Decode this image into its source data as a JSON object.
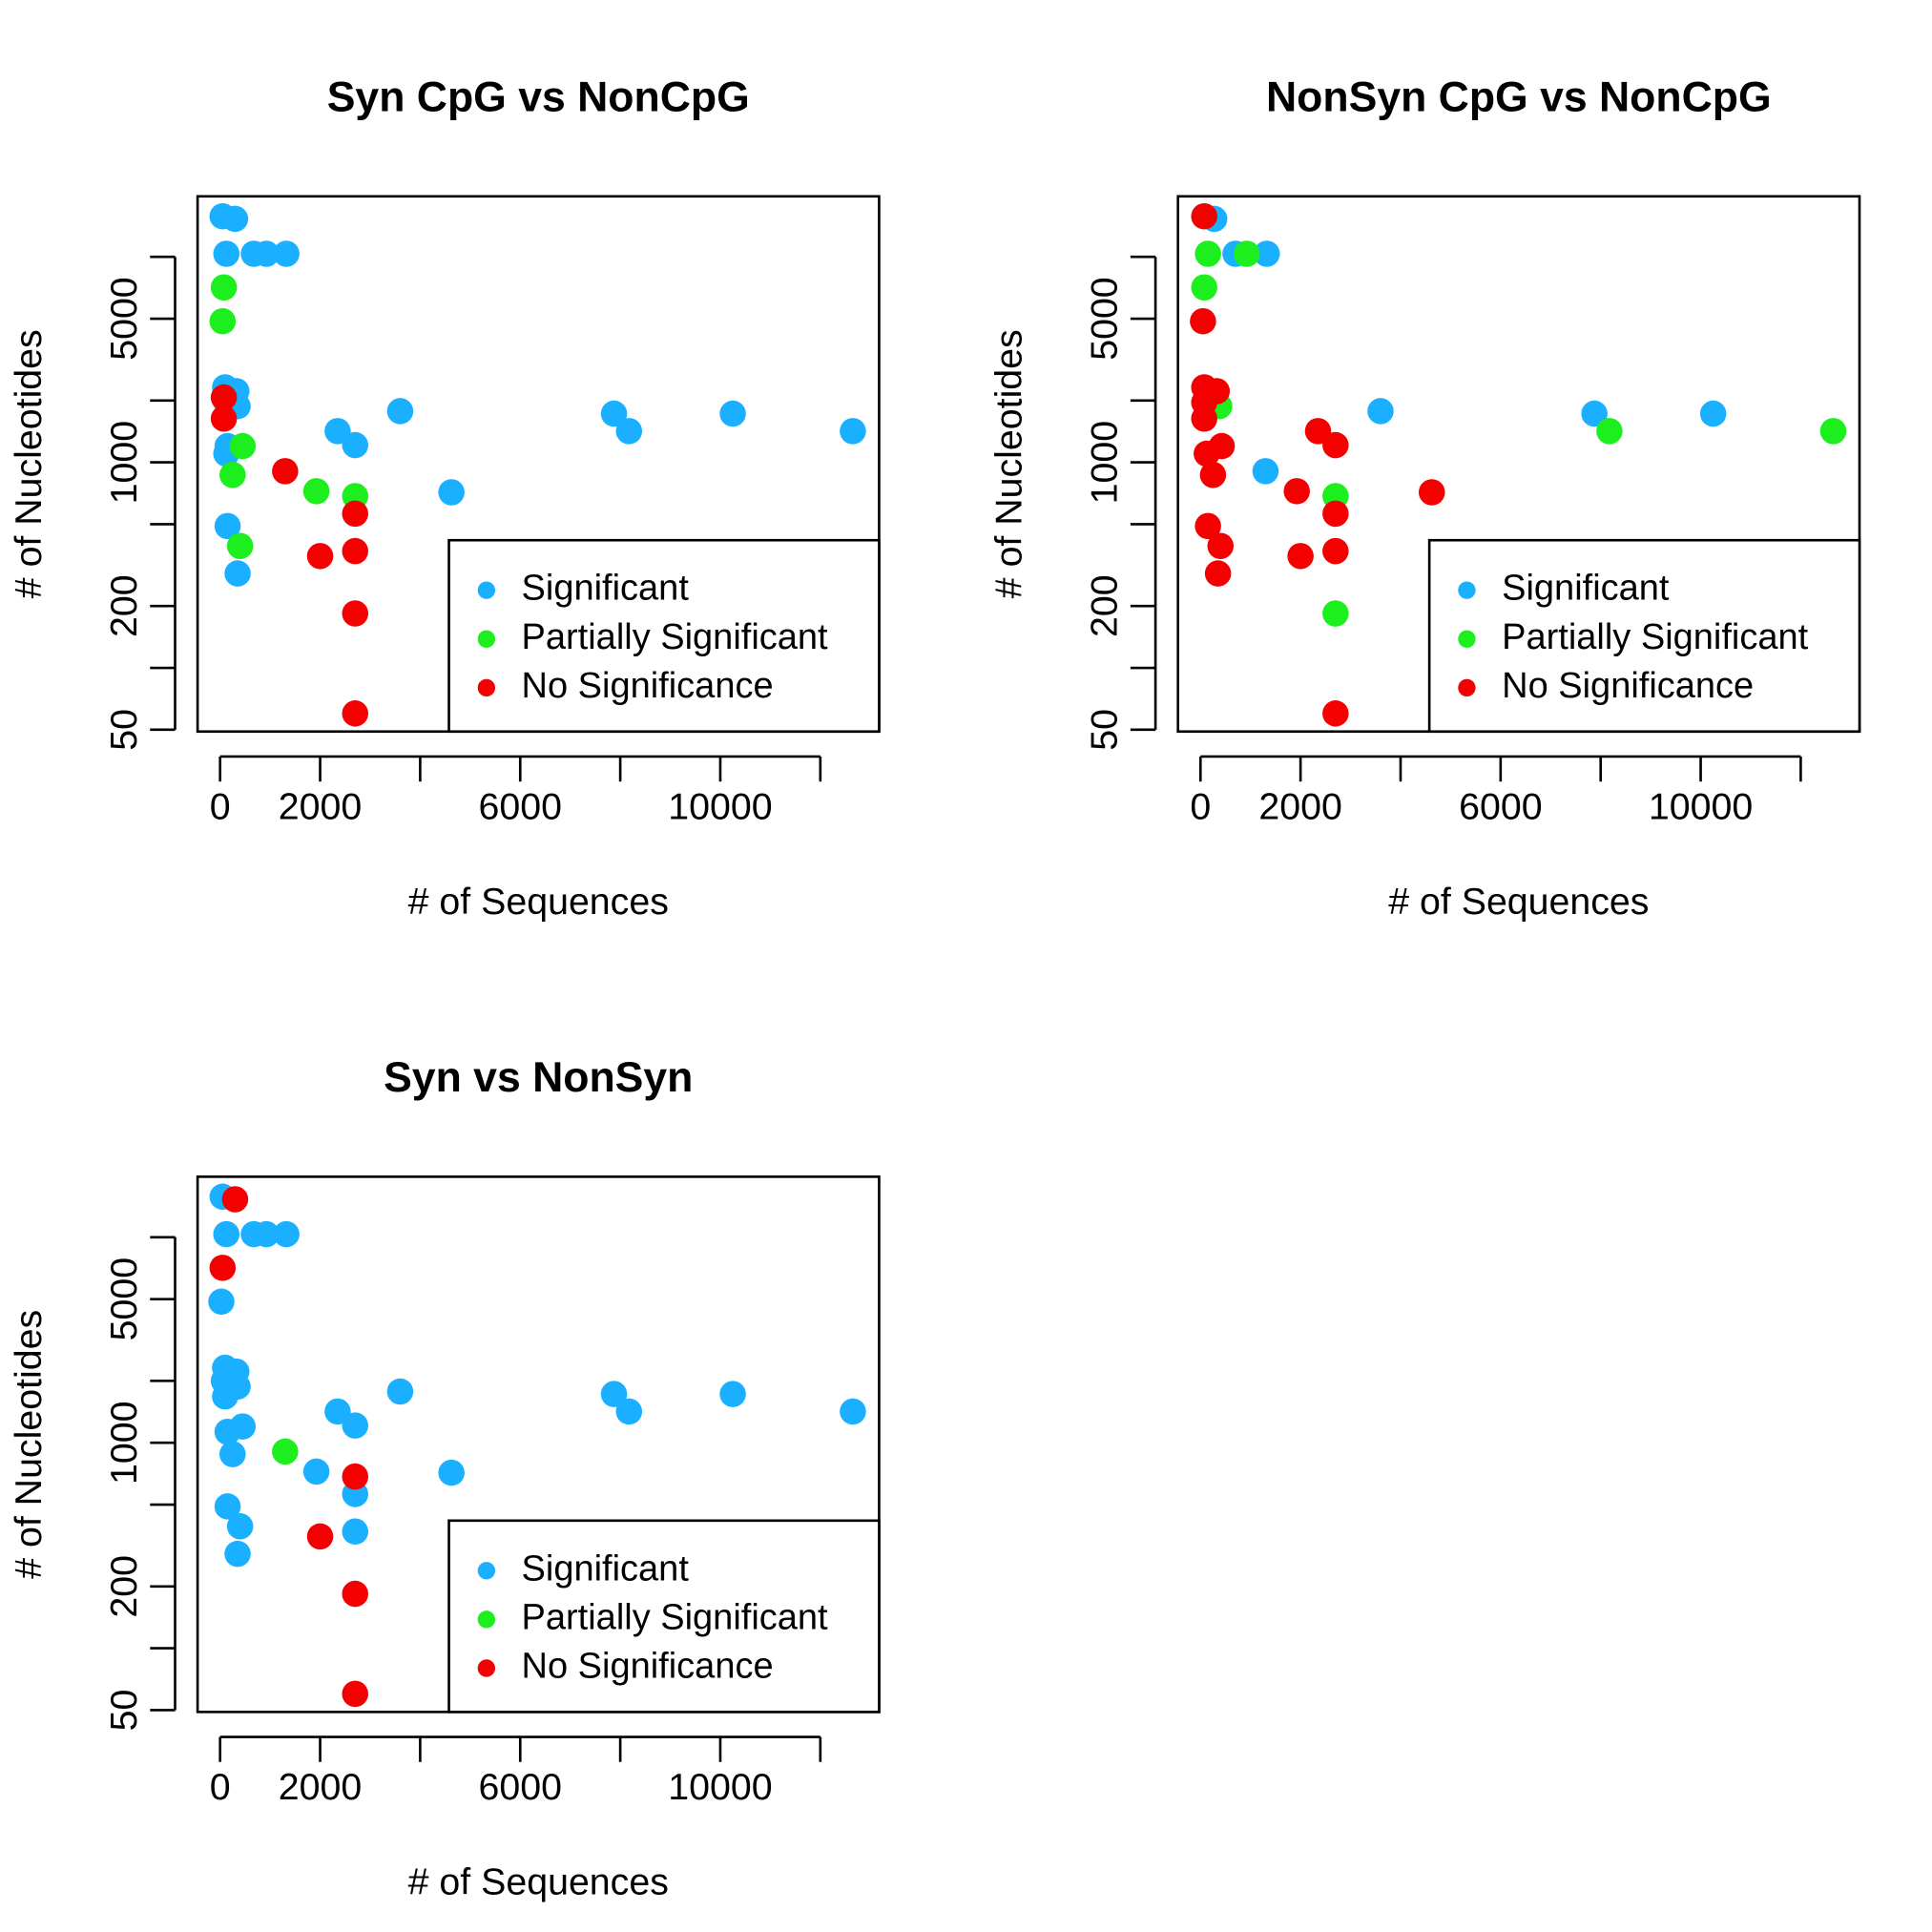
{
  "chart_data": [
    {
      "type": "scatter",
      "title": "Syn CpG vs NonCpG",
      "x_label": "# of Sequences",
      "y_label": "# of Nucleotides",
      "xlim": [
        -450,
        13175
      ],
      "ylim": [
        49,
        19700
      ],
      "ylog": true,
      "xticks": [
        0,
        2000,
        6000,
        10000
      ],
      "xticks_minor": [
        4000,
        8000,
        12000
      ],
      "yticks": [
        50,
        200,
        1000,
        5000
      ],
      "yticks_minor": [
        100,
        500,
        2000,
        10000
      ],
      "legend": "bottomright",
      "series": [
        {
          "name": "Significant",
          "color": "#1AB0FF",
          "x": [
            50,
            300,
            125,
            675,
            925,
            1325,
            100,
            325,
            350,
            125,
            150,
            125,
            2350,
            2700,
            3600,
            7875,
            8175,
            10250,
            12650,
            4625,
            150,
            350
          ],
          "values": [
            15750,
            15300,
            10350,
            10350,
            10350,
            10350,
            2317,
            2220,
            1877,
            1958,
            1200,
            1102,
            1419,
            1213,
            1775,
            1726,
            1419,
            1726,
            1419,
            715,
            490,
            288
          ]
        },
        {
          "name": "Partially Significant",
          "color": "#1DEE1D",
          "x": [
            75,
            50,
            450,
            250,
            1925,
            2700,
            400
          ],
          "values": [
            7100,
            4860,
            1200,
            869,
            724,
            685,
            392
          ]
        },
        {
          "name": "No Significance",
          "color": "#F50000",
          "x": [
            75,
            75,
            1300,
            2700,
            2000,
            2700,
            2700,
            2700
          ],
          "values": [
            2070,
            1633,
            906,
            563,
            350,
            370,
            184,
            60
          ]
        }
      ]
    },
    {
      "type": "scatter",
      "title": "NonSyn CpG vs NonCpG",
      "x_label": "# of Sequences",
      "y_label": "# of Nucleotides",
      "xlim": [
        -450,
        13175
      ],
      "ylim": [
        49,
        19700
      ],
      "ylog": true,
      "xticks": [
        0,
        2000,
        6000,
        10000
      ],
      "xticks_minor": [
        4000,
        8000,
        12000
      ],
      "yticks": [
        50,
        200,
        1000,
        5000
      ],
      "yticks_minor": [
        100,
        500,
        2000,
        10000
      ],
      "legend": "bottomright",
      "series": [
        {
          "name": "Significant",
          "color": "#1AB0FF",
          "x": [
            275,
            700,
            1325,
            1300,
            3600,
            7875,
            10250
          ],
          "values": [
            15300,
            10350,
            10350,
            906,
            1775,
            1726,
            1726
          ]
        },
        {
          "name": "Partially Significant",
          "color": "#1DEE1D",
          "x": [
            150,
            925,
            75,
            375,
            2700,
            8175,
            12650,
            2700
          ],
          "values": [
            10350,
            10350,
            7100,
            1877,
            685,
            1419,
            1419,
            184
          ]
        },
        {
          "name": "No Significance",
          "color": "#F50000",
          "x": [
            75,
            50,
            75,
            325,
            75,
            75,
            425,
            125,
            250,
            1925,
            2350,
            2700,
            4625,
            2700,
            150,
            400,
            2000,
            2700,
            350,
            2700
          ],
          "values": [
            15750,
            4860,
            2317,
            2220,
            1958,
            1633,
            1200,
            1102,
            869,
            724,
            1419,
            1213,
            715,
            563,
            490,
            392,
            350,
            370,
            288,
            60
          ]
        }
      ]
    },
    {
      "type": "scatter",
      "title": "Syn vs NonSyn",
      "x_label": "# of Sequences",
      "y_label": "# of Nucleotides",
      "xlim": [
        -450,
        13175
      ],
      "ylim": [
        49,
        19700
      ],
      "ylog": true,
      "xticks": [
        0,
        2000,
        6000,
        10000
      ],
      "xticks_minor": [
        4000,
        8000,
        12000
      ],
      "yticks": [
        50,
        200,
        1000,
        5000
      ],
      "yticks_minor": [
        100,
        500,
        2000,
        10000
      ],
      "legend": "bottomright",
      "series": [
        {
          "name": "Significant",
          "color": "#1AB0FF",
          "x": [
            50,
            125,
            675,
            925,
            1325,
            25,
            100,
            325,
            350,
            75,
            100,
            450,
            150,
            250,
            1925,
            2350,
            2700,
            3600,
            7875,
            8175,
            10250,
            12650,
            4625,
            2700,
            150,
            400,
            2700,
            350
          ],
          "values": [
            15750,
            10350,
            10350,
            10350,
            10350,
            4860,
            2317,
            2220,
            1877,
            2000,
            1680,
            1200,
            1130,
            880,
            724,
            1419,
            1213,
            1775,
            1726,
            1419,
            1726,
            1419,
            715,
            563,
            490,
            392,
            370,
            288
          ]
        },
        {
          "name": "Partially Significant",
          "color": "#1DEE1D",
          "x": [
            1300
          ],
          "values": [
            906
          ]
        },
        {
          "name": "No Significance",
          "color": "#F50000",
          "x": [
            300,
            50,
            2700,
            2000,
            2700,
            2700
          ],
          "values": [
            15300,
            7100,
            685,
            350,
            184,
            60
          ]
        }
      ]
    }
  ]
}
